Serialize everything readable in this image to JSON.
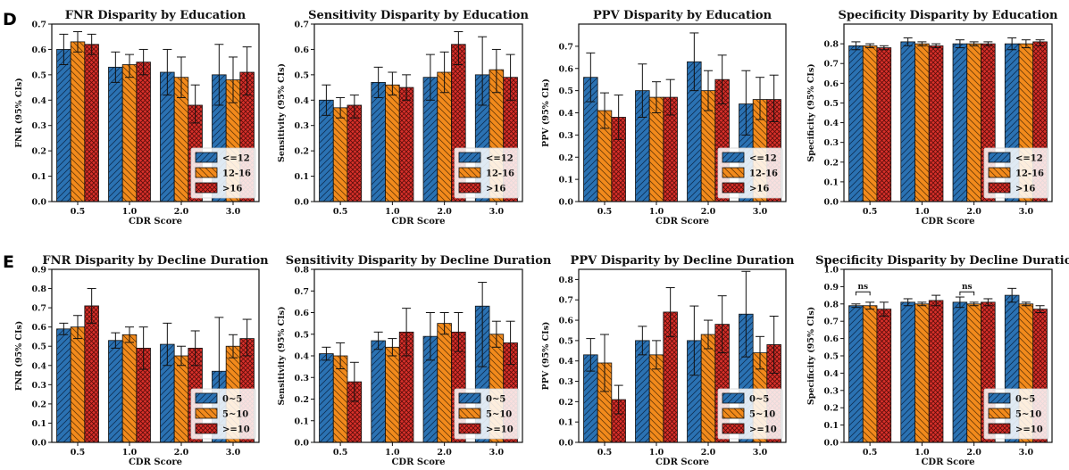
{
  "figure": {
    "panel_labels": [
      "D",
      "E"
    ],
    "colors": {
      "series1": "#2b72b3",
      "series2": "#f28a1c",
      "series3": "#d9302a"
    }
  },
  "chart_data": [
    {
      "type": "bar",
      "title": "FNR Disparity by Education",
      "xlabel": "CDR Score",
      "ylabel": "FNR (95% CIs)",
      "categories": [
        "0.5",
        "1.0",
        "2.0",
        "3.0"
      ],
      "ylim": [
        0,
        0.7
      ],
      "yticks": [
        "0.0",
        "0.1",
        "0.2",
        "0.3",
        "0.4",
        "0.5",
        "0.6",
        "0.7"
      ],
      "legend_position": "lower-right",
      "grid": false,
      "series": [
        {
          "name": "<=12",
          "values": [
            0.6,
            0.53,
            0.51,
            0.5
          ],
          "ci_low": [
            0.54,
            0.47,
            0.42,
            0.38
          ],
          "ci_high": [
            0.66,
            0.59,
            0.6,
            0.62
          ]
        },
        {
          "name": "12-16",
          "values": [
            0.63,
            0.54,
            0.49,
            0.48
          ],
          "ci_low": [
            0.59,
            0.49,
            0.41,
            0.39
          ],
          "ci_high": [
            0.67,
            0.58,
            0.57,
            0.57
          ]
        },
        {
          "name": ">16",
          "values": [
            0.62,
            0.55,
            0.38,
            0.51
          ],
          "ci_low": [
            0.58,
            0.5,
            0.31,
            0.42
          ],
          "ci_high": [
            0.66,
            0.6,
            0.46,
            0.61
          ]
        }
      ],
      "annotations": []
    },
    {
      "type": "bar",
      "title": "Sensitivity Disparity by Education",
      "xlabel": "CDR Score",
      "ylabel": "Sensitivity (95% CIs)",
      "categories": [
        "0.5",
        "1.0",
        "2.0",
        "3.0"
      ],
      "ylim": [
        0,
        0.7
      ],
      "yticks": [
        "0.0",
        "0.1",
        "0.2",
        "0.3",
        "0.4",
        "0.5",
        "0.6",
        "0.7"
      ],
      "legend_position": "lower-right",
      "grid": false,
      "series": [
        {
          "name": "<=12",
          "values": [
            0.4,
            0.47,
            0.49,
            0.5
          ],
          "ci_low": [
            0.34,
            0.41,
            0.4,
            0.38
          ],
          "ci_high": [
            0.46,
            0.53,
            0.58,
            0.65
          ]
        },
        {
          "name": "12-16",
          "values": [
            0.37,
            0.46,
            0.51,
            0.52
          ],
          "ci_low": [
            0.33,
            0.42,
            0.43,
            0.43
          ],
          "ci_high": [
            0.41,
            0.51,
            0.59,
            0.6
          ]
        },
        {
          "name": ">16",
          "values": [
            0.38,
            0.45,
            0.62,
            0.49
          ],
          "ci_low": [
            0.33,
            0.4,
            0.54,
            0.4
          ],
          "ci_high": [
            0.42,
            0.5,
            0.67,
            0.58
          ]
        }
      ],
      "annotations": []
    },
    {
      "type": "bar",
      "title": "PPV Disparity by Education",
      "xlabel": "CDR Score",
      "ylabel": "PPV (95% CIs)",
      "categories": [
        "0.5",
        "1.0",
        "2.0",
        "3.0"
      ],
      "ylim": [
        0,
        0.8
      ],
      "yticks": [
        "0.0",
        "0.1",
        "0.2",
        "0.3",
        "0.4",
        "0.5",
        "0.6",
        "0.7"
      ],
      "legend_position": "lower-right",
      "grid": false,
      "series": [
        {
          "name": "<=12",
          "values": [
            0.56,
            0.5,
            0.63,
            0.44
          ],
          "ci_low": [
            0.45,
            0.38,
            0.5,
            0.3
          ],
          "ci_high": [
            0.67,
            0.62,
            0.76,
            0.59
          ]
        },
        {
          "name": "12-16",
          "values": [
            0.41,
            0.47,
            0.5,
            0.46
          ],
          "ci_low": [
            0.33,
            0.4,
            0.41,
            0.37
          ],
          "ci_high": [
            0.49,
            0.54,
            0.59,
            0.56
          ]
        },
        {
          "name": ">16",
          "values": [
            0.38,
            0.47,
            0.55,
            0.46
          ],
          "ci_low": [
            0.28,
            0.39,
            0.44,
            0.36
          ],
          "ci_high": [
            0.48,
            0.55,
            0.66,
            0.57
          ]
        }
      ],
      "annotations": []
    },
    {
      "type": "bar",
      "title": "Specificity Disparity by Education",
      "xlabel": "CDR Score",
      "ylabel": "Specificity (95% CIs)",
      "categories": [
        "0.5",
        "1.0",
        "2.0",
        "3.0"
      ],
      "ylim": [
        0,
        0.9
      ],
      "yticks": [
        "0.0",
        "0.1",
        "0.2",
        "0.3",
        "0.4",
        "0.5",
        "0.6",
        "0.7",
        "0.8"
      ],
      "legend_position": "lower-right",
      "grid": false,
      "series": [
        {
          "name": "<=12",
          "values": [
            0.79,
            0.81,
            0.8,
            0.8
          ],
          "ci_low": [
            0.77,
            0.79,
            0.78,
            0.77
          ],
          "ci_high": [
            0.81,
            0.83,
            0.82,
            0.83
          ]
        },
        {
          "name": "12-16",
          "values": [
            0.79,
            0.8,
            0.8,
            0.8
          ],
          "ci_low": [
            0.78,
            0.79,
            0.79,
            0.78
          ],
          "ci_high": [
            0.8,
            0.81,
            0.81,
            0.82
          ]
        },
        {
          "name": ">16",
          "values": [
            0.78,
            0.79,
            0.8,
            0.81
          ],
          "ci_low": [
            0.77,
            0.78,
            0.79,
            0.79
          ],
          "ci_high": [
            0.79,
            0.8,
            0.81,
            0.82
          ]
        }
      ],
      "annotations": []
    },
    {
      "type": "bar",
      "title": "FNR Disparity by Decline Duration",
      "xlabel": "CDR Score",
      "ylabel": "FNR (95% CIs)",
      "categories": [
        "0.5",
        "1.0",
        "2.0",
        "3.0"
      ],
      "ylim": [
        0,
        0.9
      ],
      "yticks": [
        "0.0",
        "0.1",
        "0.2",
        "0.3",
        "0.4",
        "0.5",
        "0.6",
        "0.7",
        "0.8",
        "0.9"
      ],
      "legend_position": "lower-right",
      "grid": false,
      "series": [
        {
          "name": "0~5",
          "values": [
            0.59,
            0.53,
            0.51,
            0.37
          ],
          "ci_low": [
            0.56,
            0.49,
            0.4,
            0.09
          ],
          "ci_high": [
            0.62,
            0.57,
            0.62,
            0.65
          ]
        },
        {
          "name": "5~10",
          "values": [
            0.6,
            0.56,
            0.45,
            0.5
          ],
          "ci_low": [
            0.54,
            0.52,
            0.4,
            0.44
          ],
          "ci_high": [
            0.66,
            0.6,
            0.5,
            0.56
          ]
        },
        {
          "name": ">=10",
          "values": [
            0.71,
            0.49,
            0.49,
            0.54
          ],
          "ci_low": [
            0.62,
            0.38,
            0.4,
            0.45
          ],
          "ci_high": [
            0.8,
            0.6,
            0.58,
            0.64
          ]
        }
      ],
      "annotations": []
    },
    {
      "type": "bar",
      "title": "Sensitivity Disparity by Decline Duration",
      "xlabel": "CDR Score",
      "ylabel": "Sensitivity (95% CIs)",
      "categories": [
        "0.5",
        "1.0",
        "2.0",
        "3.0"
      ],
      "ylim": [
        0,
        0.8
      ],
      "yticks": [
        "0.0",
        "0.1",
        "0.2",
        "0.3",
        "0.4",
        "0.5",
        "0.6",
        "0.7",
        "0.8"
      ],
      "legend_position": "lower-right",
      "grid": false,
      "series": [
        {
          "name": "0~5",
          "values": [
            0.41,
            0.47,
            0.49,
            0.63
          ],
          "ci_low": [
            0.38,
            0.43,
            0.38,
            0.35
          ],
          "ci_high": [
            0.44,
            0.51,
            0.6,
            0.74
          ]
        },
        {
          "name": "5~10",
          "values": [
            0.4,
            0.44,
            0.55,
            0.5
          ],
          "ci_low": [
            0.34,
            0.4,
            0.5,
            0.44
          ],
          "ci_high": [
            0.46,
            0.48,
            0.6,
            0.56
          ]
        },
        {
          "name": ">=10",
          "values": [
            0.28,
            0.51,
            0.51,
            0.46
          ],
          "ci_low": [
            0.19,
            0.4,
            0.42,
            0.36
          ],
          "ci_high": [
            0.37,
            0.62,
            0.6,
            0.56
          ]
        }
      ],
      "annotations": []
    },
    {
      "type": "bar",
      "title": "PPV Disparity by Decline Duration",
      "xlabel": "CDR Score",
      "ylabel": "PPV (95% CIs)",
      "categories": [
        "0.5",
        "1.0",
        "2.0",
        "3.0"
      ],
      "ylim": [
        0,
        0.85
      ],
      "yticks": [
        "0.0",
        "0.1",
        "0.2",
        "0.3",
        "0.4",
        "0.5",
        "0.6",
        "0.7",
        "0.8"
      ],
      "legend_position": "lower-right",
      "grid": false,
      "series": [
        {
          "name": "0~5",
          "values": [
            0.43,
            0.5,
            0.5,
            0.63
          ],
          "ci_low": [
            0.35,
            0.43,
            0.33,
            0.42
          ],
          "ci_high": [
            0.51,
            0.57,
            0.67,
            0.84
          ]
        },
        {
          "name": "5~10",
          "values": [
            0.39,
            0.43,
            0.53,
            0.44
          ],
          "ci_low": [
            0.25,
            0.36,
            0.46,
            0.36
          ],
          "ci_high": [
            0.53,
            0.5,
            0.6,
            0.52
          ]
        },
        {
          "name": ">=10",
          "values": [
            0.21,
            0.64,
            0.58,
            0.48
          ],
          "ci_low": [
            0.14,
            0.52,
            0.44,
            0.34
          ],
          "ci_high": [
            0.28,
            0.76,
            0.72,
            0.62
          ]
        }
      ],
      "annotations": []
    },
    {
      "type": "bar",
      "title": "Specificity Disparity by Decline Duration",
      "xlabel": "CDR Score",
      "ylabel": "Specificity (95% CIs)",
      "categories": [
        "0.5",
        "1.0",
        "2.0",
        "3.0"
      ],
      "ylim": [
        0,
        1.0
      ],
      "yticks": [
        "0.0",
        "0.1",
        "0.2",
        "0.3",
        "0.4",
        "0.5",
        "0.6",
        "0.7",
        "0.8",
        "0.9",
        "1.0"
      ],
      "legend_position": "lower-right",
      "grid": false,
      "series": [
        {
          "name": "0~5",
          "values": [
            0.79,
            0.81,
            0.81,
            0.85
          ],
          "ci_low": [
            0.78,
            0.79,
            0.78,
            0.81
          ],
          "ci_high": [
            0.8,
            0.83,
            0.84,
            0.89
          ]
        },
        {
          "name": "5~10",
          "values": [
            0.79,
            0.8,
            0.8,
            0.8
          ],
          "ci_low": [
            0.77,
            0.79,
            0.79,
            0.79
          ],
          "ci_high": [
            0.81,
            0.81,
            0.81,
            0.81
          ]
        },
        {
          "name": ">=10",
          "values": [
            0.77,
            0.82,
            0.81,
            0.77
          ],
          "ci_low": [
            0.73,
            0.79,
            0.79,
            0.75
          ],
          "ci_high": [
            0.81,
            0.85,
            0.83,
            0.79
          ]
        }
      ],
      "annotations": [
        {
          "text": "ns",
          "category": 0,
          "from_series": 0,
          "to_series": 1,
          "y": 0.87
        },
        {
          "text": "ns",
          "category": 2,
          "from_series": 0,
          "to_series": 1,
          "y": 0.87
        }
      ]
    }
  ]
}
